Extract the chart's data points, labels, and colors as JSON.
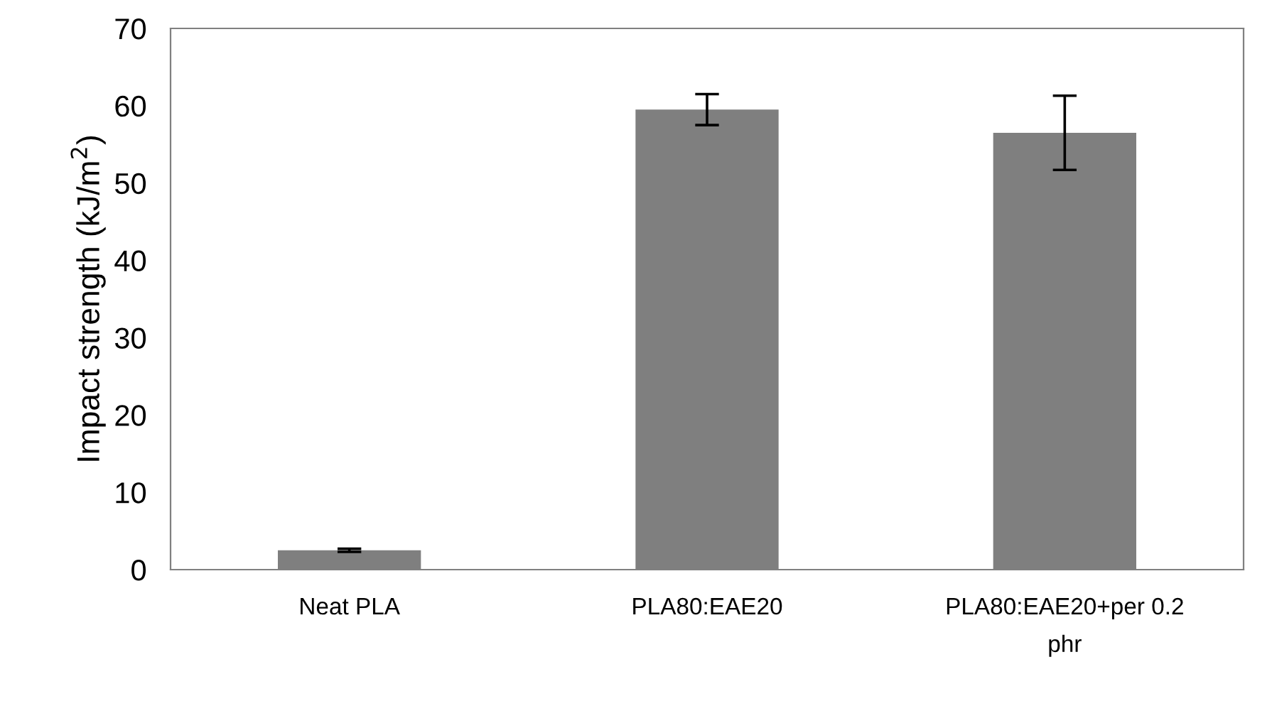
{
  "chart_data": {
    "type": "bar",
    "ylabel": "Impact strength (kJ/m$^{2}$)",
    "categories": [
      "Neat PLA",
      "PLA80:EAE20",
      "PLA80:EAE20+per 0.2\nphr"
    ],
    "values": [
      2.5,
      59.5,
      56.5
    ],
    "errors": [
      0.2,
      2,
      4.8
    ],
    "color": "#7f7f7f",
    "ylim": [
      0,
      70
    ],
    "yticks": [
      0,
      10,
      20,
      30,
      40,
      50,
      60,
      70
    ],
    "grid": false,
    "legend": false
  }
}
